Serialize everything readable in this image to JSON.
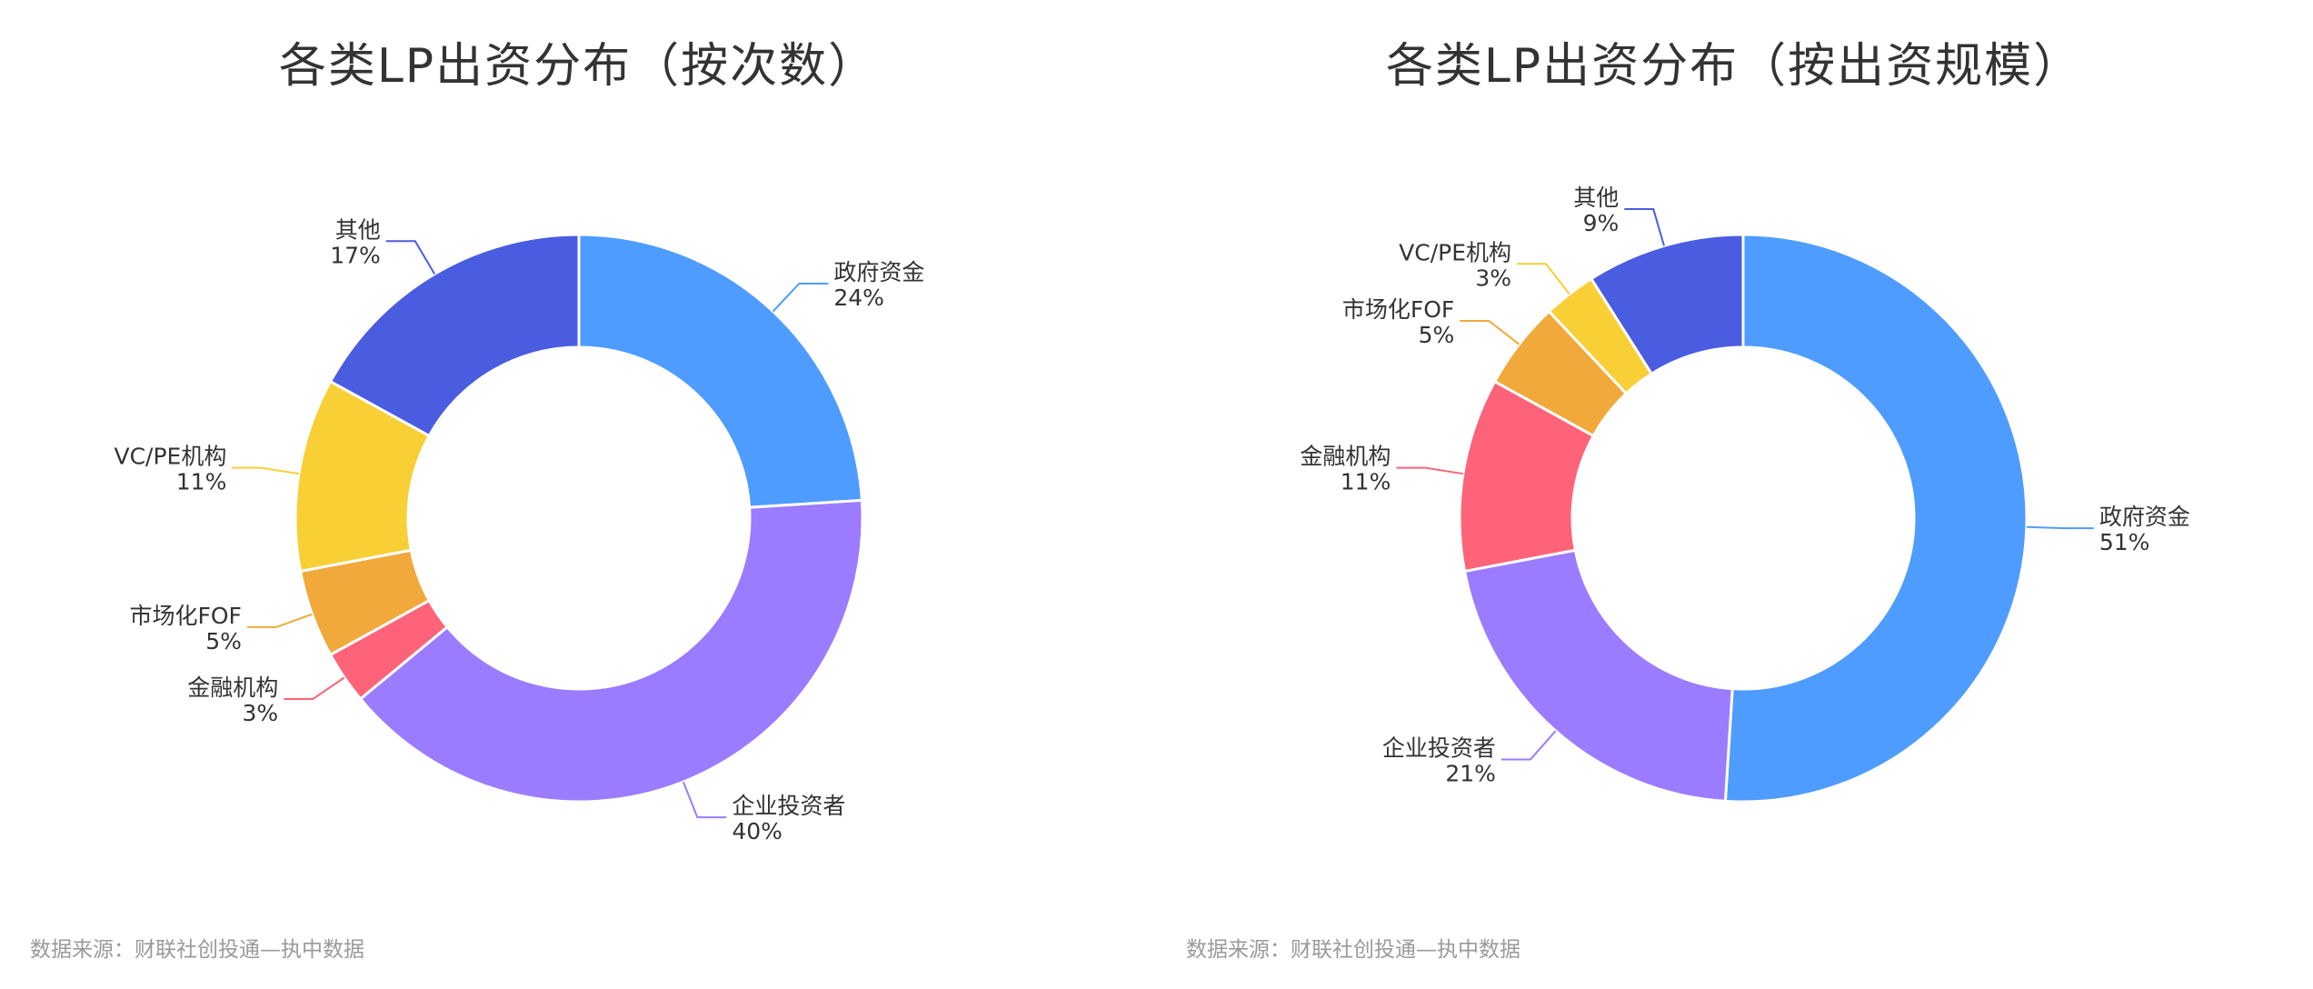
{
  "chart_data": [
    {
      "type": "pie",
      "title": "各类LP出资分布（按次数）",
      "source": "数据来源：财联社创投通—执中数据",
      "slices": [
        {
          "name": "政府资金",
          "value": 24,
          "label": "24%",
          "color": "#4E9CFF"
        },
        {
          "name": "企业投资者",
          "value": 40,
          "label": "40%",
          "color": "#9B7BFF"
        },
        {
          "name": "金融机构",
          "value": 3,
          "label": "3%",
          "color": "#FF6379"
        },
        {
          "name": "市场化FOF",
          "value": 5,
          "label": "5%",
          "color": "#F0A93A"
        },
        {
          "name": "VC/PE机构",
          "value": 11,
          "label": "11%",
          "color": "#F8CF35"
        },
        {
          "name": "其他",
          "value": 17,
          "label": "17%",
          "color": "#4A5CE0"
        }
      ]
    },
    {
      "type": "pie",
      "title": "各类LP出资分布（按出资规模）",
      "source": "数据来源：财联社创投通—执中数据",
      "slices": [
        {
          "name": "政府资金",
          "value": 51,
          "label": "51%",
          "color": "#4E9CFF"
        },
        {
          "name": "企业投资者",
          "value": 21,
          "label": "21%",
          "color": "#9B7BFF"
        },
        {
          "name": "金融机构",
          "value": 11,
          "label": "11%",
          "color": "#FF6379"
        },
        {
          "name": "市场化FOF",
          "value": 5,
          "label": "5%",
          "color": "#F0A93A"
        },
        {
          "name": "VC/PE机构",
          "value": 3,
          "label": "3%",
          "color": "#F8CF35"
        },
        {
          "name": "其他",
          "value": 9,
          "label": "9%",
          "color": "#4A5CE0"
        }
      ]
    }
  ]
}
